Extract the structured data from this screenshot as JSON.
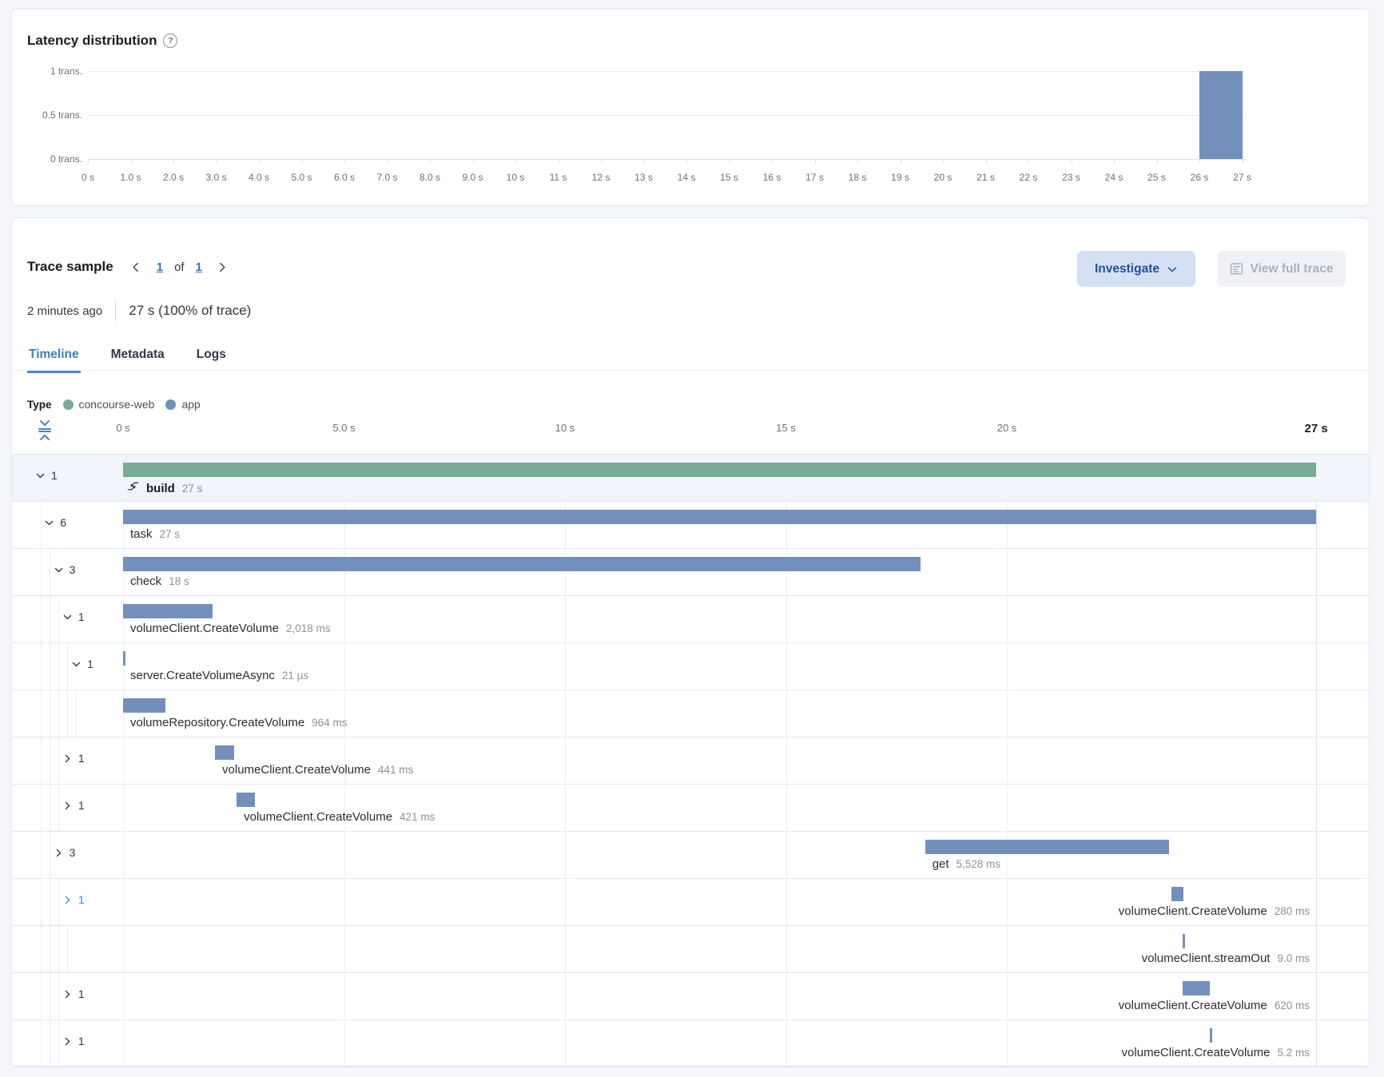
{
  "latency": {
    "title": "Latency distribution",
    "y_ticks": [
      {
        "label": "1 trans.",
        "value": 1
      },
      {
        "label": "0.5 trans.",
        "value": 0.5
      },
      {
        "label": "0 trans.",
        "value": 0
      }
    ],
    "x_ticks": [
      "0 s",
      "1.0 s",
      "2.0 s",
      "3.0 s",
      "4.0 s",
      "5.0 s",
      "6.0 s",
      "7.0 s",
      "8.0 s",
      "9.0 s",
      "10 s",
      "11 s",
      "12 s",
      "13 s",
      "14 s",
      "15 s",
      "16 s",
      "17 s",
      "18 s",
      "19 s",
      "20 s",
      "21 s",
      "22 s",
      "23 s",
      "24 s",
      "25 s",
      "26 s",
      "27 s"
    ],
    "chart_data": {
      "type": "bar",
      "title": "Latency distribution",
      "x_range_s": [
        0,
        27
      ],
      "y_range_trans": [
        0,
        1
      ],
      "bars": [
        {
          "from_s": 26,
          "to_s": 27,
          "count": 1
        }
      ]
    },
    "bar_color": "#7290bb"
  },
  "trace": {
    "title": "Trace sample",
    "pagination": {
      "page": "1",
      "of": "of",
      "total": "1"
    },
    "investigate_label": "Investigate",
    "view_full_trace_label": "View full trace",
    "age": "2 minutes ago",
    "duration": "27 s (100% of trace)",
    "tabs": [
      {
        "label": "Timeline",
        "active": true
      },
      {
        "label": "Metadata",
        "active": false
      },
      {
        "label": "Logs",
        "active": false
      }
    ],
    "legend": {
      "label": "Type",
      "items": [
        {
          "label": "concourse-web",
          "color": "#79ac95"
        },
        {
          "label": "app",
          "color": "#7290bb"
        }
      ]
    },
    "ruler_ticks": [
      {
        "label": "0 s",
        "s": 0
      },
      {
        "label": "5.0 s",
        "s": 5
      },
      {
        "label": "10 s",
        "s": 10
      },
      {
        "label": "15 s",
        "s": 15
      },
      {
        "label": "20 s",
        "s": 20
      },
      {
        "label": "27 s",
        "s": 27,
        "em": true
      }
    ],
    "waterfall_rows": [
      {
        "depth": 0,
        "expanded": true,
        "count": "1",
        "name": "build",
        "duration": "27 s",
        "start_s": 0,
        "dur_s": 27,
        "service": "concourse-web",
        "selected": true,
        "bold": true,
        "icon": "merge-icon"
      },
      {
        "depth": 1,
        "expanded": true,
        "count": "6",
        "name": "task",
        "duration": "27 s",
        "start_s": 0,
        "dur_s": 27,
        "service": "app"
      },
      {
        "depth": 2,
        "expanded": true,
        "count": "3",
        "name": "check",
        "duration": "18 s",
        "start_s": 0,
        "dur_s": 18.05,
        "service": "app"
      },
      {
        "depth": 3,
        "expanded": true,
        "count": "1",
        "name": "volumeClient.CreateVolume",
        "duration": "2,018 ms",
        "start_s": 0,
        "dur_s": 2.018,
        "service": "app"
      },
      {
        "depth": 4,
        "expanded": true,
        "count": "1",
        "name": "server.CreateVolumeAsync",
        "duration": "21 µs",
        "start_s": 0,
        "dur_s": 0.021,
        "service": "app"
      },
      {
        "depth": 5,
        "expanded": null,
        "count": "",
        "name": "volumeRepository.CreateVolume",
        "duration": "964 ms",
        "start_s": 0,
        "dur_s": 0.964,
        "service": "app"
      },
      {
        "depth": 3,
        "expanded": false,
        "count": "1",
        "name": "volumeClient.CreateVolume",
        "duration": "441 ms",
        "start_s": 2.08,
        "dur_s": 0.441,
        "service": "app"
      },
      {
        "depth": 3,
        "expanded": false,
        "count": "1",
        "name": "volumeClient.CreateVolume",
        "duration": "421 ms",
        "start_s": 2.57,
        "dur_s": 0.421,
        "service": "app"
      },
      {
        "depth": 2,
        "expanded": false,
        "count": "3",
        "name": "get",
        "duration": "5,528 ms",
        "start_s": 18.15,
        "dur_s": 5.528,
        "service": "app"
      },
      {
        "depth": 3,
        "expanded": false,
        "count": "1",
        "name": "volumeClient.CreateVolume",
        "duration": "280 ms",
        "start_s": 23.72,
        "dur_s": 0.28,
        "service": "app",
        "highlight": true,
        "label_right": true
      },
      {
        "depth": 4,
        "expanded": null,
        "count": "",
        "name": "volumeClient.streamOut",
        "duration": "9.0 ms",
        "start_s": 23.97,
        "dur_s": 0.009,
        "service": "app",
        "label_right": true
      },
      {
        "depth": 3,
        "expanded": false,
        "count": "1",
        "name": "volumeClient.CreateVolume",
        "duration": "620 ms",
        "start_s": 23.98,
        "dur_s": 0.62,
        "service": "app",
        "label_right": true
      },
      {
        "depth": 3,
        "expanded": false,
        "count": "1",
        "name": "volumeClient.CreateVolume",
        "duration": "5.2 ms",
        "start_s": 24.6,
        "dur_s": 0.0052,
        "service": "app",
        "label_right": true
      }
    ]
  }
}
